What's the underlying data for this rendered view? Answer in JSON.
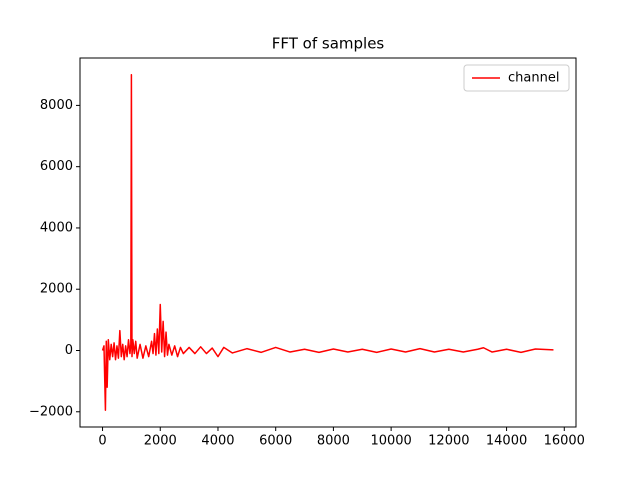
{
  "chart_data": {
    "type": "line",
    "title": "FFT of samples",
    "x": [
      0,
      50,
      100,
      130,
      160,
      200,
      250,
      300,
      350,
      400,
      450,
      500,
      550,
      600,
      650,
      700,
      750,
      800,
      850,
      900,
      950,
      980,
      1000,
      1020,
      1050,
      1100,
      1150,
      1200,
      1300,
      1400,
      1500,
      1600,
      1700,
      1750,
      1800,
      1850,
      1900,
      1950,
      2000,
      2050,
      2100,
      2150,
      2200,
      2250,
      2300,
      2400,
      2500,
      2600,
      2700,
      2800,
      3000,
      3200,
      3400,
      3600,
      3800,
      4000,
      4200,
      4500,
      5000,
      5500,
      6000,
      6500,
      7000,
      7500,
      8000,
      8500,
      9000,
      9500,
      10000,
      10500,
      11000,
      11500,
      12000,
      12500,
      13000,
      13200,
      13500,
      14000,
      14500,
      15000,
      15625
    ],
    "series": [
      {
        "name": "channel",
        "color": "#ff0000",
        "values": [
          0,
          150,
          -1950,
          300,
          -1200,
          350,
          -300,
          200,
          -200,
          250,
          -300,
          150,
          -250,
          650,
          -200,
          200,
          -300,
          150,
          -200,
          350,
          -100,
          200,
          9000,
          -200,
          350,
          -100,
          300,
          -250,
          200,
          -250,
          150,
          -200,
          300,
          -100,
          550,
          -150,
          700,
          -100,
          1500,
          -50,
          950,
          -200,
          600,
          -150,
          200,
          -150,
          150,
          -200,
          100,
          -100,
          100,
          -100,
          120,
          -100,
          80,
          -200,
          100,
          -80,
          60,
          -60,
          100,
          -50,
          40,
          -60,
          50,
          -50,
          40,
          -60,
          50,
          -50,
          60,
          -50,
          40,
          -50,
          40,
          90,
          -50,
          40,
          -60,
          50,
          20
        ]
      }
    ],
    "xlim": [
      -781,
      16406
    ],
    "ylim": [
      -2497,
      9547
    ],
    "xticks": [
      0,
      2000,
      4000,
      6000,
      8000,
      10000,
      12000,
      14000,
      16000
    ],
    "yticks": [
      {
        "value": -2000,
        "label": "−2000"
      },
      0,
      2000,
      4000,
      6000,
      8000
    ],
    "legend": "upper right"
  }
}
